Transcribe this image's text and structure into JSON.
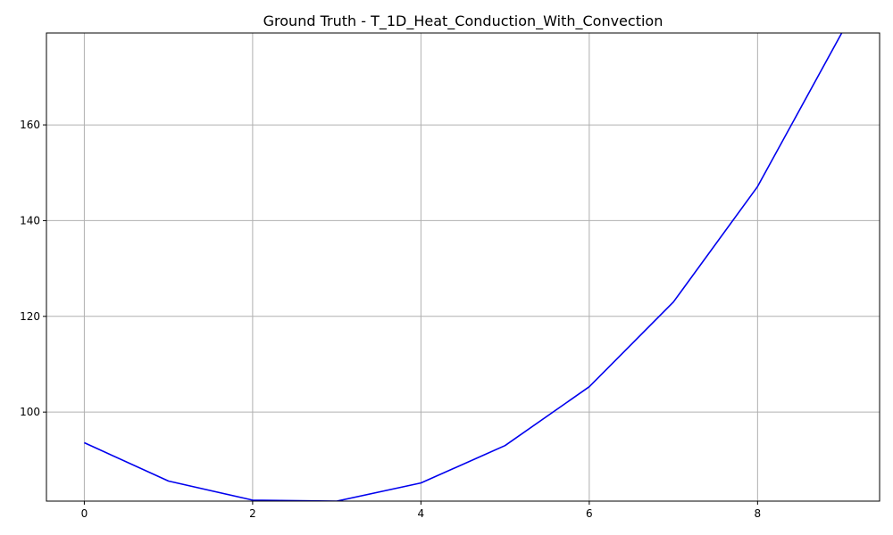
{
  "chart_data": {
    "type": "line",
    "title": "Ground Truth - T_1D_Heat_Conduction_With_Convection",
    "xlabel": "",
    "ylabel": "",
    "xlim": [
      -0.45,
      9.45
    ],
    "ylim": [
      81.4,
      179.2
    ],
    "x_ticks": [
      0,
      2,
      4,
      6,
      8
    ],
    "y_ticks": [
      100,
      120,
      140,
      160
    ],
    "grid": true,
    "series": [
      {
        "color": "#0000ee",
        "x": [
          0,
          1,
          2,
          3,
          4,
          5,
          6,
          7,
          8,
          9
        ],
        "values": [
          93.6,
          85.6,
          81.6,
          81.4,
          85.2,
          93.0,
          105.3,
          123.0,
          147.1,
          179.2
        ]
      }
    ]
  }
}
